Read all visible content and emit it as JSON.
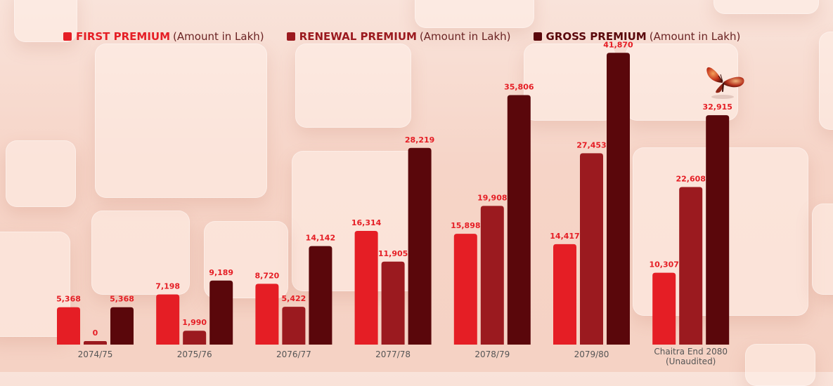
{
  "chart_data": {
    "type": "bar",
    "title": "",
    "xlabel": "",
    "ylabel": "",
    "ylim": [
      0,
      42500
    ],
    "grid": false,
    "legend_position": "top-left",
    "categories": [
      "2074/75",
      "2075/76",
      "2076/77",
      "2077/78",
      "2078/79",
      "2079/80",
      "Chaitra End 2080\n(Unaudited)"
    ],
    "series": [
      {
        "name": "FIRST PREMIUM",
        "unit": "(Amount in Lakh)",
        "color": "#e51e25",
        "values": [
          5368,
          7198,
          8720,
          16314,
          15898,
          14417,
          10307
        ],
        "labels": [
          "5,368",
          "7,198",
          "8,720",
          "16,314",
          "15,898",
          "14,417",
          "10,307"
        ]
      },
      {
        "name": "RENEWAL PREMIUM",
        "unit": "(Amount in Lakh)",
        "color": "#9b1a1f",
        "values": [
          0,
          1990,
          5422,
          11905,
          19908,
          27453,
          22608
        ],
        "labels": [
          "0",
          "1,990",
          "5,422",
          "11,905",
          "19,908",
          "27,453",
          "22,608"
        ]
      },
      {
        "name": "GROSS PREMIUM",
        "unit": "(Amount in Lakh)",
        "color": "#5a070b",
        "values": [
          5368,
          9189,
          14142,
          28219,
          35806,
          41870,
          32915
        ],
        "labels": [
          "5,368",
          "9,189",
          "14,142",
          "28,219",
          "35,806",
          "41,870",
          "32,915"
        ]
      }
    ]
  },
  "colors": {
    "label_text": "#e51e25",
    "legend_text": "#6a2323",
    "axis_text": "#555555",
    "accent_first": "#e51e25",
    "accent_renewal": "#9b1a1f",
    "accent_gross": "#5a070b"
  },
  "decor": {
    "butterfly": "butterfly-icon"
  }
}
